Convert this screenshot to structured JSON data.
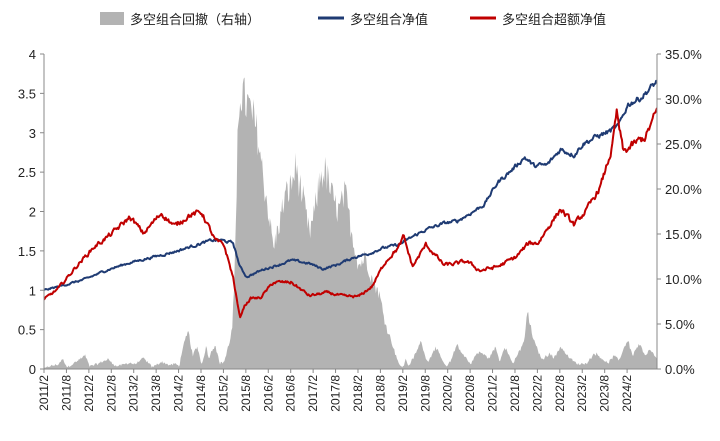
{
  "chart_data": {
    "type": "line",
    "title": "",
    "legend": {
      "placement": "top",
      "items": [
        {
          "name": "多空组合回撤（右轴）",
          "kind": "area",
          "color": "#b3b3b3"
        },
        {
          "name": "多空组合净值",
          "kind": "line",
          "color": "#1f3b73"
        },
        {
          "name": "多空组合超额净值",
          "kind": "line",
          "color": "#c00000"
        }
      ]
    },
    "y_left": {
      "ylim": [
        0,
        4
      ],
      "ticks": [
        0,
        0.5,
        1,
        1.5,
        2,
        2.5,
        3,
        3.5,
        4
      ],
      "tick_labels": [
        "0",
        "0.5",
        "1",
        "1.5",
        "2",
        "2.5",
        "3",
        "3.5",
        "4"
      ]
    },
    "y_right": {
      "ylim": [
        0,
        35
      ],
      "ticks": [
        0,
        5,
        10,
        15,
        20,
        25,
        30,
        35
      ],
      "tick_labels": [
        "0.0%",
        "5.0%",
        "10.0%",
        "15.0%",
        "20.0%",
        "25.0%",
        "30.0%",
        "35.0%"
      ]
    },
    "x_axis": {
      "range": [
        2011.083,
        2024.75
      ],
      "tick_labels": [
        "2011/2",
        "2011/8",
        "2012/2",
        "2012/8",
        "2013/2",
        "2013/8",
        "2014/2",
        "2014/8",
        "2015/2",
        "2015/8",
        "2016/2",
        "2016/8",
        "2017/2",
        "2017/8",
        "2018/2",
        "2018/8",
        "2019/2",
        "2019/8",
        "2020/2",
        "2020/8",
        "2021/2",
        "2021/8",
        "2022/2",
        "2022/8",
        "2023/2",
        "2023/8",
        "2024/2"
      ]
    },
    "grid": false,
    "series": [
      {
        "name": "多空组合净值",
        "axis": "left",
        "color": "#1f3b73",
        "x": [
          2011.083,
          2011.5,
          2012.0,
          2012.5,
          2013.0,
          2013.5,
          2014.0,
          2014.5,
          2014.8,
          2015.0,
          2015.3,
          2015.45,
          2015.6,
          2015.8,
          2016.0,
          2016.3,
          2016.6,
          2017.0,
          2017.3,
          2017.6,
          2018.0,
          2018.3,
          2018.6,
          2019.0,
          2019.3,
          2019.6,
          2020.0,
          2020.3,
          2020.6,
          2020.9,
          2021.2,
          2021.5,
          2021.8,
          2022.0,
          2022.3,
          2022.6,
          2022.9,
          2023.1,
          2023.4,
          2023.7,
          2023.9,
          2024.1,
          2024.4,
          2024.75
        ],
        "y": [
          1.0,
          1.06,
          1.14,
          1.26,
          1.35,
          1.42,
          1.49,
          1.58,
          1.63,
          1.64,
          1.6,
          1.3,
          1.17,
          1.22,
          1.27,
          1.32,
          1.38,
          1.34,
          1.27,
          1.32,
          1.42,
          1.46,
          1.53,
          1.58,
          1.68,
          1.77,
          1.85,
          1.88,
          1.98,
          2.09,
          2.37,
          2.52,
          2.69,
          2.58,
          2.59,
          2.79,
          2.72,
          2.86,
          2.95,
          3.02,
          3.09,
          3.36,
          3.45,
          3.65
        ]
      },
      {
        "name": "多空组合超额净值",
        "axis": "left",
        "color": "#c00000",
        "x": [
          2011.083,
          2011.4,
          2011.8,
          2012.2,
          2012.6,
          2013.0,
          2013.3,
          2013.7,
          2014.0,
          2014.3,
          2014.6,
          2014.9,
          2015.1,
          2015.3,
          2015.45,
          2015.55,
          2015.7,
          2015.9,
          2016.2,
          2016.6,
          2017.0,
          2017.4,
          2017.8,
          2018.1,
          2018.4,
          2018.7,
          2019.0,
          2019.1,
          2019.3,
          2019.6,
          2020.0,
          2020.3,
          2020.5,
          2020.8,
          2021.2,
          2021.6,
          2021.9,
          2022.1,
          2022.3,
          2022.6,
          2022.9,
          2023.2,
          2023.5,
          2023.75,
          2023.85,
          2024.0,
          2024.3,
          2024.5,
          2024.75
        ],
        "y": [
          0.88,
          1.02,
          1.3,
          1.55,
          1.72,
          1.93,
          1.72,
          1.98,
          1.81,
          1.95,
          1.99,
          1.63,
          1.57,
          1.16,
          0.65,
          0.8,
          0.9,
          0.9,
          1.1,
          1.1,
          0.93,
          0.97,
          0.92,
          0.92,
          1.05,
          1.37,
          1.55,
          1.68,
          1.3,
          1.58,
          1.32,
          1.34,
          1.37,
          1.25,
          1.3,
          1.42,
          1.6,
          1.6,
          1.78,
          2.03,
          1.83,
          2.03,
          2.33,
          2.81,
          3.25,
          2.75,
          2.88,
          2.95,
          3.28
        ]
      },
      {
        "name": "多空组合回撤（右轴）",
        "axis": "right",
        "kind": "area",
        "color": "#b3b3b3",
        "x": [
          2011.083,
          2011.2,
          2011.4,
          2011.5,
          2011.6,
          2011.8,
          2012.0,
          2012.1,
          2012.3,
          2012.5,
          2012.7,
          2013.0,
          2013.1,
          2013.3,
          2013.5,
          2013.7,
          2013.9,
          2014.0,
          2014.1,
          2014.15,
          2014.3,
          2014.4,
          2014.5,
          2014.6,
          2014.7,
          2014.75,
          2014.9,
          2015.0,
          2015.1,
          2015.2,
          2015.28,
          2015.32,
          2015.38,
          2015.4,
          2015.45,
          2015.55,
          2015.7,
          2015.85,
          2015.95,
          2016.1,
          2016.2,
          2016.3,
          2016.45,
          2016.6,
          2016.7,
          2016.85,
          2017.0,
          2017.1,
          2017.25,
          2017.35,
          2017.55,
          2017.65,
          2017.8,
          2017.95,
          2018.1,
          2018.25,
          2018.4,
          2018.55,
          2018.7,
          2018.8,
          2018.9,
          2019.0,
          2019.1,
          2019.15,
          2019.2,
          2019.35,
          2019.5,
          2019.55,
          2019.65,
          2019.8,
          2019.95,
          2020.05,
          2020.15,
          2020.3,
          2020.4,
          2020.5,
          2020.6,
          2020.7,
          2020.8,
          2021.0,
          2021.15,
          2021.25,
          2021.35,
          2021.45,
          2021.55,
          2021.7,
          2021.8,
          2021.85,
          2021.95,
          2022.05,
          2022.2,
          2022.35,
          2022.45,
          2022.6,
          2022.75,
          2022.85,
          2023.0,
          2023.2,
          2023.35,
          2023.5,
          2023.65,
          2023.8,
          2023.9,
          2024.0,
          2024.1,
          2024.2,
          2024.35,
          2024.5,
          2024.6,
          2024.75
        ],
        "y": [
          0,
          0.3,
          0.5,
          1.1,
          0.2,
          0.8,
          1.5,
          0.3,
          0.6,
          1.1,
          0.3,
          0.7,
          0.5,
          1.2,
          0.2,
          0.8,
          0.4,
          0.6,
          0.3,
          1.8,
          4.2,
          1.5,
          2.5,
          0.5,
          2.6,
          1.2,
          2.8,
          0.6,
          0.8,
          2.6,
          4.5,
          9,
          18,
          27,
          31,
          30,
          28.5,
          26,
          22,
          17,
          13.5,
          15.5,
          19,
          20.5,
          22.5,
          19,
          15,
          17,
          21.5,
          22,
          18.5,
          17.5,
          19.5,
          15,
          11.5,
          12.5,
          10,
          8.5,
          5,
          3.5,
          2,
          0.5,
          0.2,
          1.2,
          0.3,
          1.5,
          3.2,
          1.8,
          0.8,
          2.4,
          1.2,
          0.2,
          0.9,
          2.8,
          1.7,
          1.2,
          0.5,
          1.5,
          1.9,
          1.2,
          2.4,
          0.8,
          2.6,
          1.5,
          0.6,
          2.2,
          3.2,
          6.5,
          4.2,
          2.5,
          1.0,
          1.8,
          1.2,
          2.5,
          1.5,
          1.0,
          0.5,
          0.7,
          1.8,
          1.3,
          0.6,
          1.5,
          0.9,
          2.2,
          3.3,
          1.5,
          2.8,
          1.4,
          2.2,
          1.0
        ]
      }
    ]
  }
}
